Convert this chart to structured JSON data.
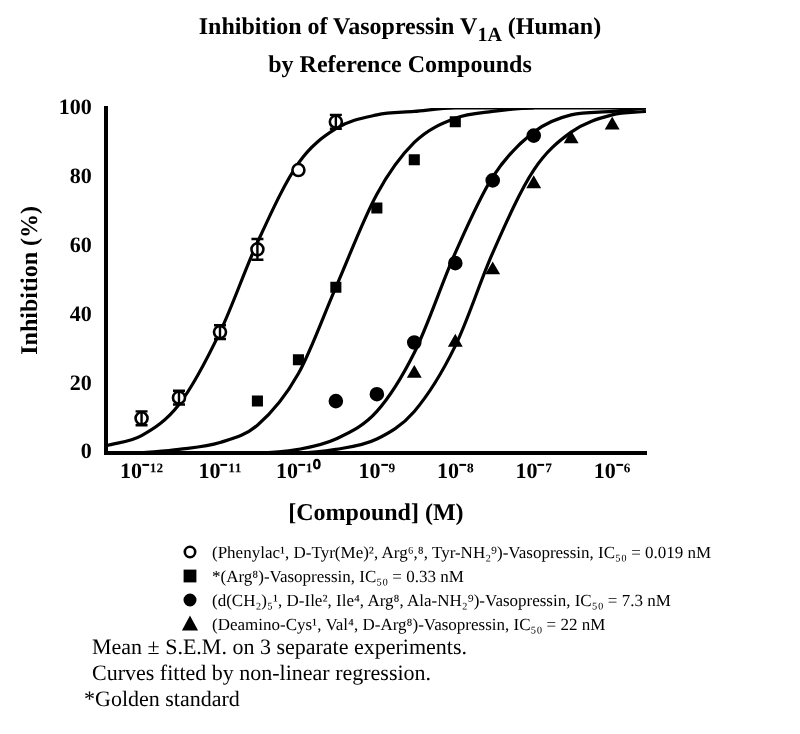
{
  "chart_data": {
    "type": "scatter",
    "title": "Inhibition of  Vasopressin V$_{1A}$ (Human)\nby Reference Compounds",
    "xlabel": "[Compound] (M)",
    "ylabel": "Inhibition (%)",
    "log": "x",
    "grid": false,
    "legend": "bottom",
    "xlim": [
      3.5e-13,
      2.7e-06
    ],
    "xticks": [
      {
        "value": 1e-12,
        "label": "10⁻¹²"
      },
      {
        "value": 1e-11,
        "label": "10⁻¹¹"
      },
      {
        "value": 1e-10,
        "label": "10⁻¹⁰"
      },
      {
        "value": 1e-09,
        "label": "10⁻⁹"
      },
      {
        "value": 1e-08,
        "label": "10⁻⁸"
      },
      {
        "value": 1e-07,
        "label": "10⁻⁷"
      },
      {
        "value": 1e-06,
        "label": "10⁻⁶"
      }
    ],
    "ylim": [
      0,
      100
    ],
    "yticks": [
      0,
      20,
      40,
      60,
      80,
      100
    ],
    "series": [
      {
        "name": "(Phenylac¹, D-Tyr(Me)², Arg⁶,⁸, Tyr-NH₂⁹)-Vasopressin, IC₅₀ = 0.019 nM",
        "type": "scatter",
        "marker": "circle",
        "color": "#ffffff",
        "x": [
          1e-12,
          3e-12,
          1e-11,
          3e-11,
          1e-10,
          3e-10
        ],
        "values": [
          10,
          16,
          35,
          59,
          82,
          96
        ],
        "errors": [
          2,
          2,
          2,
          3,
          null,
          2
        ]
      },
      {
        "name": "*(Arg⁸)-Vasopressin, IC₅₀ = 0.33 nM",
        "type": "scatter",
        "marker": "square",
        "color": "#000000",
        "x": [
          3e-11,
          1e-10,
          3e-10,
          1e-09,
          3e-09,
          1e-08
        ],
        "values": [
          15,
          27,
          48,
          71,
          85,
          96
        ]
      },
      {
        "name": "(d(CH₂)₅¹, D-Ile², Ile⁴, Arg⁸, Ala-NH₂⁹)-Vasopressin, IC₅₀ = 7.3 nM",
        "type": "scatter",
        "marker": "circle",
        "color": "#000000",
        "x": [
          3e-10,
          1e-09,
          3e-09,
          1e-08,
          3e-08,
          1e-07
        ],
        "values": [
          15,
          17,
          32,
          55,
          79,
          92
        ]
      },
      {
        "name": "(Deamino-Cys¹, Val⁴, D-Arg⁸)-Vasopressin, IC₅₀ = 22 nM",
        "type": "scatter",
        "marker": "triangle",
        "color": "#000000",
        "x": [
          3e-09,
          1e-08,
          3e-08,
          1e-07,
          3e-07,
          1e-06
        ],
        "values": [
          23,
          32,
          53,
          78,
          91,
          95
        ]
      },
      {
        "type": "line",
        "marker": "none",
        "color": "#000000",
        "x": [
          3.5e-13,
          1e-12,
          3e-12,
          1e-11,
          3e-11,
          1e-10,
          3e-10,
          1e-09,
          3e-09,
          1e-08,
          3e-08,
          1e-07
        ],
        "values": [
          2,
          5,
          14,
          35,
          61,
          84,
          94,
          98,
          99,
          100,
          100,
          100
        ]
      },
      {
        "type": "line",
        "marker": "none",
        "color": "#000000",
        "x": [
          1e-12,
          3e-12,
          1e-11,
          3e-11,
          1e-10,
          3e-10,
          1e-09,
          3e-09,
          1e-08,
          3e-08,
          1e-07,
          3e-07,
          1e-06,
          2.7e-06
        ],
        "values": [
          0,
          1,
          3,
          8,
          23,
          48,
          75,
          90,
          97,
          99,
          100,
          100,
          100,
          100
        ]
      },
      {
        "type": "line",
        "marker": "none",
        "color": "#000000",
        "x": [
          1e-11,
          3e-11,
          1e-10,
          3e-10,
          1e-09,
          3e-09,
          1e-08,
          3e-08,
          1e-07,
          3e-07,
          1e-06,
          2.7e-06
        ],
        "values": [
          0,
          0,
          1,
          4,
          12,
          29,
          58,
          80,
          93,
          98,
          99,
          100
        ]
      },
      {
        "type": "line",
        "marker": "none",
        "color": "#000000",
        "x": [
          3e-11,
          1e-10,
          3e-10,
          1e-09,
          3e-09,
          1e-08,
          3e-08,
          1e-07,
          3e-07,
          1e-06,
          2.7e-06
        ],
        "values": [
          0,
          0,
          1,
          4,
          12,
          31,
          58,
          82,
          93,
          98,
          99
        ]
      }
    ],
    "annotations": [
      "Mean ± S.E.M. on 3 separate experiments.",
      "Curves fitted by non-linear regression.",
      "*Golden standard"
    ]
  }
}
